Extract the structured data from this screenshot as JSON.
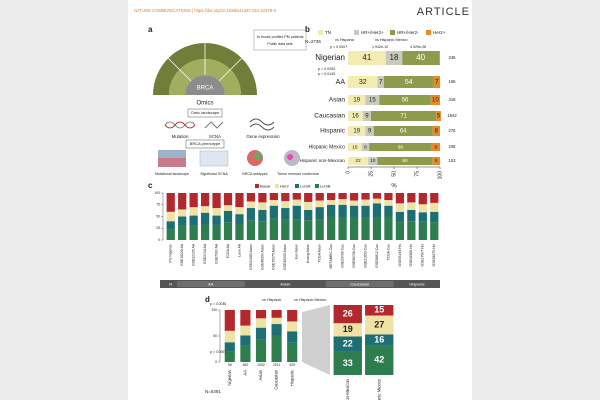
{
  "header": {
    "journal": "NATURE COMMUNICATIONS | https://doi.org/10.1038/s41467-021-22478-5",
    "section": "ARTICLE"
  },
  "panel_a": {
    "label": "a",
    "center_top": "BRCA",
    "center_bottom": "Omics",
    "sources": [
      "In-house profiled PM patients",
      "Public data sets"
    ],
    "omic_box": "Omic landscape",
    "omics": [
      "Mutation",
      "SCNA",
      "Gene expression"
    ],
    "phenotype_box": "BRCA phenotype",
    "phenotypes": [
      "Mutational landscape",
      "Significant SCNA",
      "BRCA subtypes",
      "Tumor immune contexture"
    ]
  },
  "chart_data": [
    {
      "type": "bar",
      "orientation": "horizontal",
      "stacked": true,
      "panel_label": "b",
      "total_label": "N=2736",
      "categories": [
        "Nigerian",
        "AA",
        "Asian",
        "Caucasian",
        "Hispanic",
        "Hispanic Mexico",
        "Hispanic non-Mexican"
      ],
      "series": [
        {
          "name": "TN",
          "color": "#f3ecb2",
          "values": [
            41,
            32,
            19,
            16,
            19,
            15,
            22
          ]
        },
        {
          "name": "HR+/Her2+",
          "color": "#c9c9bd",
          "values": [
            18,
            7,
            15,
            9,
            9,
            8,
            10
          ]
        },
        {
          "name": "HR+/Her2-",
          "color": "#8d9b4c",
          "values": [
            40,
            54,
            56,
            71,
            64,
            68,
            60
          ]
        },
        {
          "name": "Her2+",
          "color": "#e8892a",
          "values": [
            1,
            7,
            10,
            5,
            8,
            9,
            8
          ]
        }
      ],
      "n_labels": [
        "246",
        "166",
        "318",
        "1842",
        "276",
        "238",
        "153"
      ],
      "annotations": [
        "p = 0.0007",
        "1.942e-10",
        "4.929e-06",
        "p = 0.0254",
        "p = 0.0149"
      ],
      "comparison_legend": [
        "vs Hispanic",
        "vs Hispanic Mexico"
      ],
      "xlabel": "%",
      "xlim": [
        0,
        100
      ],
      "xticks": [
        0,
        25,
        50,
        75,
        100
      ]
    },
    {
      "type": "bar",
      "stacked": true,
      "panel_label": "c",
      "categories": [
        "Pts Nigerian",
        "GSE18229 AA",
        "GSE22035 AA",
        "GSE2034 AA",
        "GSE7390 AA",
        "TCGA AA",
        "Lane AA",
        "GSE20685 Asian",
        "GSE48390 Asian",
        "GSE76275 Asian",
        "GSE45255 Asian",
        "Kan Asian",
        "Huang Asian",
        "TCGA Asian",
        "METABRIC Cau",
        "GSE25066 Cau",
        "GSE96058 Cau",
        "GSE21653 Cau",
        "GSE58812 Cau",
        "TCGA Cau",
        "GSE65194 His",
        "GSE42568 His",
        "GSE17907 His",
        "GSE54275 His"
      ],
      "series": [
        {
          "name": "Basal",
          "color": "#b3282d",
          "values": [
            40,
            35,
            30,
            28,
            32,
            26,
            30,
            18,
            20,
            15,
            17,
            14,
            19,
            16,
            15,
            13,
            16,
            14,
            12,
            15,
            22,
            20,
            24,
            21
          ]
        },
        {
          "name": "Her2",
          "color": "#efe2a4",
          "values": [
            20,
            15,
            18,
            14,
            16,
            12,
            15,
            14,
            16,
            12,
            15,
            13,
            17,
            14,
            10,
            12,
            11,
            13,
            10,
            12,
            18,
            16,
            17,
            19
          ]
        },
        {
          "name": "LumA",
          "color": "#1d6f74",
          "values": [
            18,
            20,
            22,
            25,
            20,
            24,
            22,
            26,
            24,
            28,
            25,
            30,
            22,
            27,
            25,
            28,
            24,
            26,
            30,
            23,
            22,
            24,
            20,
            22
          ]
        },
        {
          "name": "LumB",
          "color": "#2e7d4f",
          "values": [
            22,
            30,
            30,
            33,
            32,
            38,
            33,
            42,
            40,
            45,
            43,
            43,
            42,
            43,
            50,
            47,
            49,
            47,
            48,
            50,
            38,
            40,
            39,
            38
          ]
        }
      ],
      "group_labels": [
        "N",
        "AA",
        "Asian",
        "Caucasian",
        "Hispanic"
      ],
      "ylim": [
        0,
        100
      ],
      "yticks": [
        0,
        25,
        50,
        75,
        100
      ]
    },
    {
      "type": "bar",
      "stacked": true,
      "panel_label": "d",
      "total_label": "N=5491",
      "categories": [
        "Nigerian",
        "AA",
        "Asian",
        "Caucasian",
        "Hispanic"
      ],
      "series": [
        {
          "name": "Basal",
          "color": "#b3282d",
          "values": [
            40,
            30,
            16,
            15,
            22
          ]
        },
        {
          "name": "Her2",
          "color": "#efe2a4",
          "values": [
            22,
            19,
            18,
            12,
            19
          ]
        },
        {
          "name": "LumA",
          "color": "#1d6f74",
          "values": [
            18,
            20,
            23,
            22,
            22
          ]
        },
        {
          "name": "LumB",
          "color": "#2e7d4f",
          "values": [
            20,
            31,
            43,
            51,
            37
          ]
        }
      ],
      "n_labels": [
        "96",
        "652",
        "1052",
        "2011",
        "429"
      ],
      "annotations": [
        "p = 0.0036",
        "p = 0.0007"
      ],
      "comparison_legend": [
        "vs Hispanic",
        "vs Hispanic Mexico"
      ],
      "ylim": [
        0,
        100
      ],
      "yticks": [
        0,
        50,
        100
      ]
    },
    {
      "type": "bar",
      "stacked": true,
      "categories": [
        "Hispanic non-Mexican",
        "Hispanic Mexico"
      ],
      "series": [
        {
          "name": "Basal",
          "color": "#b3282d",
          "values": [
            26,
            15
          ]
        },
        {
          "name": "Her2",
          "color": "#efe2a4",
          "values": [
            19,
            27
          ]
        },
        {
          "name": "LumA",
          "color": "#1d6f74",
          "values": [
            22,
            16
          ]
        },
        {
          "name": "LumB",
          "color": "#2e7d4f",
          "values": [
            33,
            42
          ]
        }
      ],
      "ylim": [
        0,
        100
      ]
    }
  ]
}
